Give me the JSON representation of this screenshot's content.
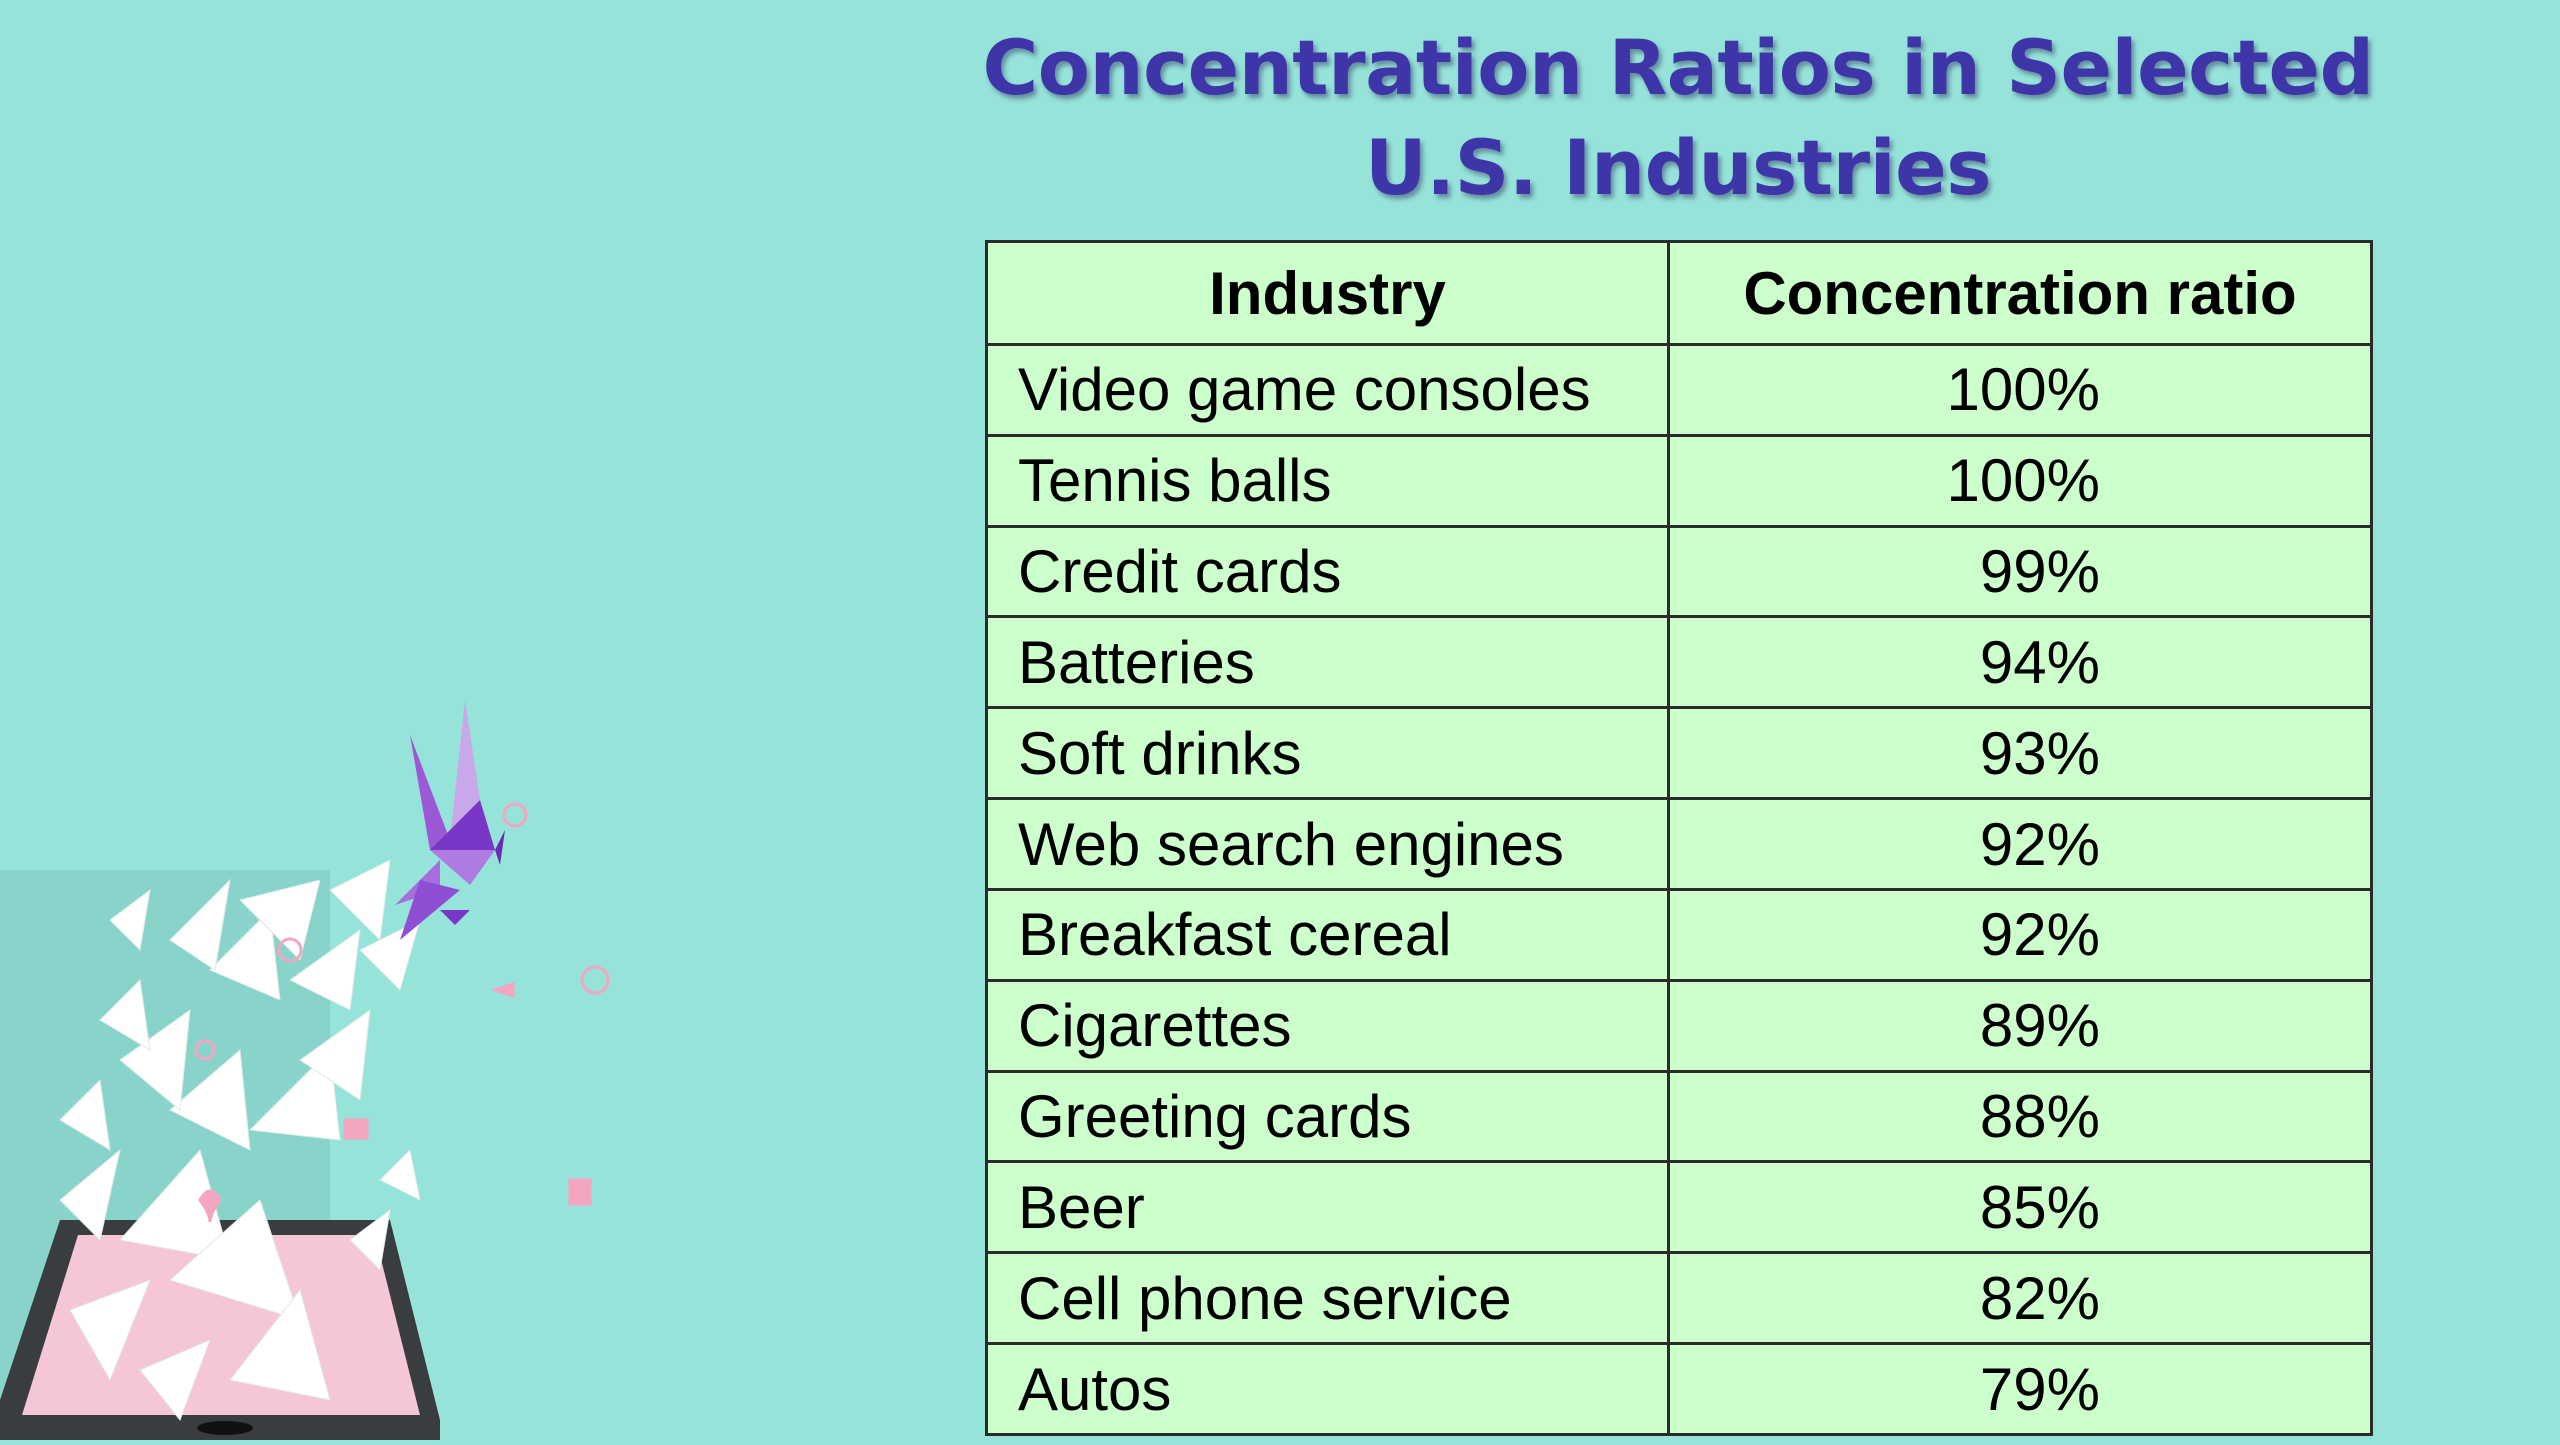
{
  "slide": {
    "title": "Concentration Ratios in Selected U.S. Industries"
  },
  "table": {
    "headers": [
      "Industry",
      "Concentration ratio"
    ],
    "rows": [
      {
        "industry": "Video game consoles",
        "ratio": "100%"
      },
      {
        "industry": "Tennis balls",
        "ratio": "100%"
      },
      {
        "industry": "Credit cards",
        "ratio": "99%"
      },
      {
        "industry": "Batteries",
        "ratio": "94%"
      },
      {
        "industry": "Soft drinks",
        "ratio": "93%"
      },
      {
        "industry": "Web search engines",
        "ratio": "92%"
      },
      {
        "industry": "Breakfast cereal",
        "ratio": "92%"
      },
      {
        "industry": "Cigarettes",
        "ratio": "89%"
      },
      {
        "industry": "Greeting cards",
        "ratio": "88%"
      },
      {
        "industry": "Beer",
        "ratio": "85%"
      },
      {
        "industry": "Cell phone service",
        "ratio": "82%"
      },
      {
        "industry": "Autos",
        "ratio": "79%"
      }
    ]
  },
  "colors": {
    "background": "#96e3d9",
    "title": "#3d35a8",
    "table_fill": "#ccffcc",
    "table_border": "#2b2b2b"
  },
  "icons": {
    "illustration": "tablet-with-paper-shards-and-origami-bird-illustration"
  }
}
